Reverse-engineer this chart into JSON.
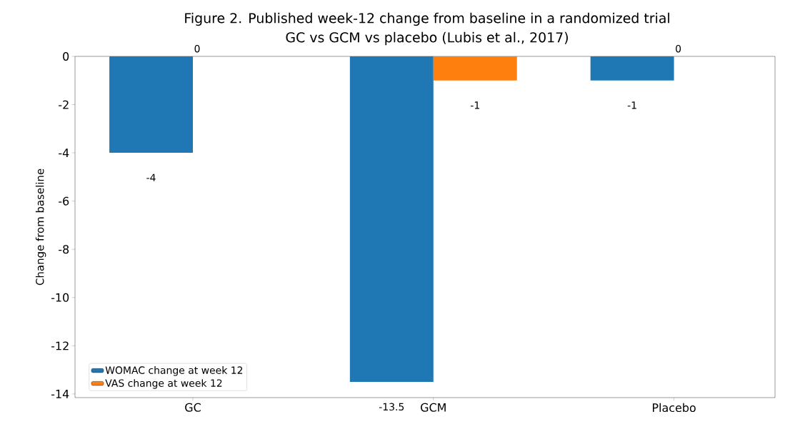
{
  "chart_data": {
    "type": "bar",
    "title": "Figure 2. Published week-12 change from baseline in a randomized trial",
    "subtitle": "GC vs GCM vs placebo (Lubis et al., 2017)",
    "ylabel": "Change from baseline",
    "categories": [
      "GC",
      "GCM",
      "Placebo"
    ],
    "series": [
      {
        "name": "WOMAC change at week 12",
        "color": "#1f77b4",
        "values": [
          -4,
          -13.5,
          -1
        ]
      },
      {
        "name": "VAS change at week 12",
        "color": "#ff7f0e",
        "values": [
          0,
          -1,
          0
        ]
      }
    ],
    "ylim": [
      -14.15,
      0
    ],
    "yticks": [
      -14,
      -12,
      -10,
      -8,
      -6,
      -4,
      -2,
      0
    ],
    "data_labels": true,
    "legend": "bottom left"
  }
}
